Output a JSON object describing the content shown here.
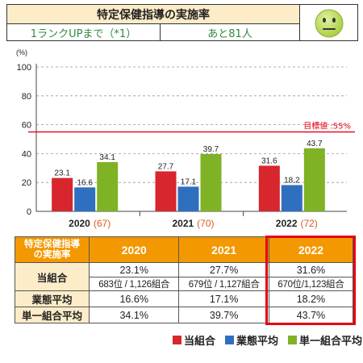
{
  "header": {
    "title": "特定保健指導の実施率",
    "rank_up": "1ランクUPまで（*1）",
    "remaining": "あと81人",
    "status_icon": "neutral-face-icon"
  },
  "colors": {
    "own": "#d7262e",
    "industry": "#2f6fbf",
    "single": "#7fb224",
    "target_line": "#e60012",
    "table_header": "#f39800"
  },
  "chart_data": {
    "type": "bar",
    "unit_label": "(%)",
    "categories": [
      "2020",
      "2021",
      "2022"
    ],
    "category_counts": [
      "(67)",
      "(70)",
      "(72)"
    ],
    "series": [
      {
        "name": "当組合",
        "values": [
          23.1,
          27.7,
          31.6
        ]
      },
      {
        "name": "業態平均",
        "values": [
          16.6,
          17.1,
          18.2
        ]
      },
      {
        "name": "単一組合平均",
        "values": [
          34.1,
          39.7,
          43.7
        ]
      }
    ],
    "ylim": [
      0,
      100
    ],
    "yticks": [
      0,
      20,
      40,
      60,
      80,
      100
    ],
    "target": {
      "value": 55,
      "label": "目標値 :55%"
    },
    "grid": true
  },
  "table": {
    "corner": [
      "特定保健指導",
      "の実施率"
    ],
    "years": [
      "2020",
      "2021",
      "2022"
    ],
    "rows": {
      "own_label": "当組合",
      "own_pct": [
        "23.1%",
        "27.7%",
        "31.6%"
      ],
      "own_rank": [
        "683位 / 1,126組合",
        "679位 / 1,127組合",
        "670位/1,123組合"
      ],
      "industry_label": "業態平均",
      "industry_pct": [
        "16.6%",
        "17.1%",
        "18.2%"
      ],
      "single_label": "単一組合平均",
      "single_pct": [
        "34.1%",
        "39.7%",
        "43.7%"
      ]
    }
  },
  "legend": [
    "当組合",
    "業態平均",
    "単一組合平均"
  ]
}
